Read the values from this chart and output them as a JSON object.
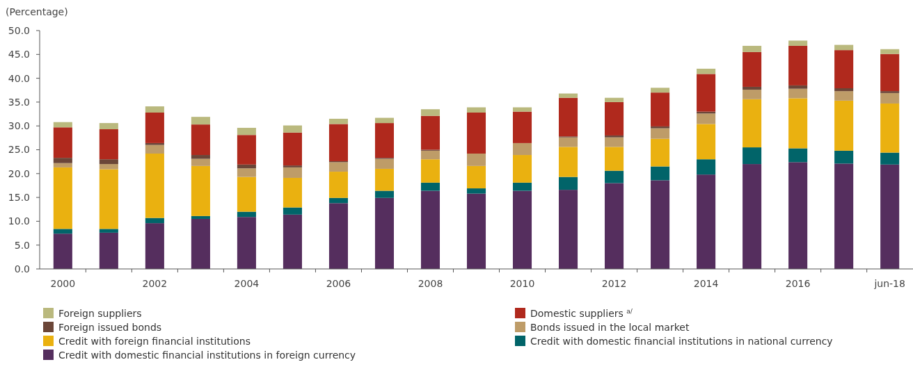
{
  "chart_data": {
    "type": "bar",
    "stacked": true,
    "ylabel": "(Percentage)",
    "legend": "bottom",
    "grid": false,
    "categories": [
      "2000",
      null,
      "2002",
      null,
      "2004",
      null,
      "2006",
      null,
      "2008",
      null,
      "2010",
      null,
      "2012",
      null,
      "2014",
      null,
      "2016",
      null,
      "jun-18"
    ],
    "ylim": [
      0,
      50
    ],
    "yticks": [
      {
        "value": 0,
        "label": "0.0"
      },
      {
        "value": 5,
        "label": "5.0"
      },
      {
        "value": 10,
        "label": "10.0"
      },
      {
        "value": 15,
        "label": "15.0"
      },
      {
        "value": 20,
        "label": "20.0"
      },
      {
        "value": 25,
        "label": "25.0"
      },
      {
        "value": 30,
        "label": "30.0"
      },
      {
        "value": 35,
        "label": "35.0"
      },
      {
        "value": 40,
        "label": "40.0"
      },
      {
        "value": 45,
        "label": "45.0"
      },
      {
        "value": 50,
        "label": "50.0"
      }
    ],
    "series": [
      {
        "name": "Credit with domestic financial institutions in foreign currency",
        "color": "#552e5e",
        "values": [
          7.4,
          7.6,
          9.6,
          10.5,
          10.9,
          11.4,
          13.8,
          14.9,
          16.4,
          15.8,
          16.4,
          16.6,
          18.0,
          18.6,
          19.8,
          22.0,
          22.4,
          22.1,
          21.9
        ]
      },
      {
        "name": "Credit with domestic financial institutions in national currency",
        "color": "#016469",
        "values": [
          1.0,
          0.8,
          1.1,
          0.6,
          1.1,
          1.5,
          1.1,
          1.5,
          1.7,
          1.1,
          1.7,
          2.7,
          2.6,
          2.9,
          3.2,
          3.5,
          2.9,
          2.7,
          2.5
        ]
      },
      {
        "name": "Credit with foreign financial institutions",
        "color": "#eab110",
        "values": [
          12.9,
          12.5,
          13.5,
          10.5,
          7.3,
          6.2,
          5.5,
          4.6,
          4.9,
          4.7,
          5.8,
          6.3,
          5.0,
          5.8,
          7.4,
          10.1,
          10.5,
          10.5,
          10.3
        ]
      },
      {
        "name": "Bonds issued in the local market",
        "color": "#be9c68",
        "values": [
          0.9,
          1.1,
          1.8,
          1.5,
          1.8,
          2.2,
          2.0,
          2.1,
          1.8,
          2.6,
          2.5,
          2.0,
          2.0,
          2.2,
          2.2,
          2.0,
          2.0,
          2.0,
          2.2
        ]
      },
      {
        "name": "Foreign issued bonds",
        "color": "#6b4638",
        "values": [
          1.1,
          1.0,
          0.4,
          0.8,
          0.8,
          0.4,
          0.2,
          0.2,
          0.2,
          0,
          0,
          0.2,
          0.4,
          0.4,
          0.4,
          0.6,
          0.7,
          0.6,
          0.4
        ]
      },
      {
        "name": "Domestic suppliers $^{a/}$",
        "color": "#b0291d",
        "values": [
          6.4,
          6.3,
          6.4,
          6.4,
          6.2,
          6.9,
          7.8,
          7.3,
          7.1,
          8.6,
          6.6,
          8.1,
          7.0,
          7.1,
          7.9,
          7.3,
          8.3,
          8.0,
          7.8
        ]
      },
      {
        "name": "Foreign suppliers",
        "color": "#bab97e",
        "values": [
          1.1,
          1.3,
          1.3,
          1.6,
          1.5,
          1.5,
          1.1,
          1.1,
          1.4,
          1.1,
          0.9,
          0.9,
          0.9,
          1.0,
          1.1,
          1.3,
          1.1,
          1.1,
          1.0
        ]
      }
    ]
  }
}
